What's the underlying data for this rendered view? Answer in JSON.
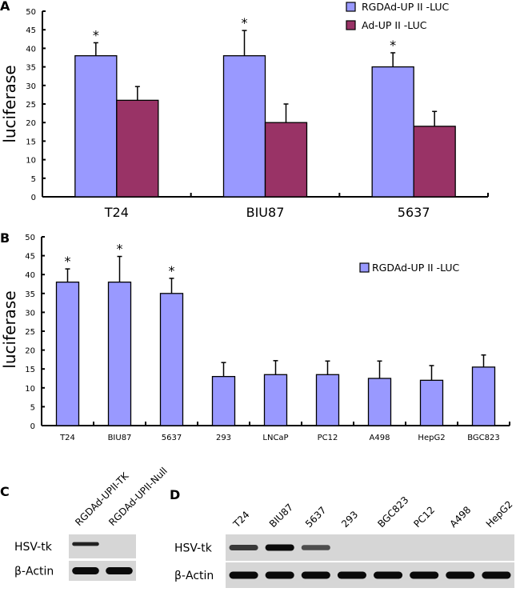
{
  "colors": {
    "rgd": "#9999FF",
    "ad": "#993366",
    "axis": "#000000"
  },
  "chart_data": [
    {
      "panel": "A",
      "type": "bar",
      "title": "",
      "xlabel": "",
      "ylabel": "luciferase",
      "ylim": [
        0,
        50
      ],
      "yticks": [
        0,
        5,
        10,
        15,
        20,
        25,
        30,
        35,
        40,
        45,
        50
      ],
      "categories": [
        "T24",
        "BIU87",
        "5637"
      ],
      "legend_position": "top-right",
      "series": [
        {
          "name": "RGDAd-UP II -LUC",
          "color": "#9999FF",
          "values": [
            38,
            38,
            35
          ],
          "error": [
            3.5,
            6.8,
            3.8
          ],
          "significance": [
            "*",
            "*",
            "*"
          ]
        },
        {
          "name": "Ad-UP II -LUC",
          "color": "#993366",
          "values": [
            26,
            20,
            19
          ],
          "error": [
            3.7,
            5,
            4
          ],
          "significance": [
            "",
            "",
            ""
          ]
        }
      ]
    },
    {
      "panel": "B",
      "type": "bar",
      "title": "",
      "xlabel": "",
      "ylabel": "luciferase",
      "ylim": [
        0,
        50
      ],
      "yticks": [
        0,
        5,
        10,
        15,
        20,
        25,
        30,
        35,
        40,
        45,
        50
      ],
      "categories": [
        "T24",
        "BIU87",
        "5637",
        "293",
        "LNCaP",
        "PC12",
        "A498",
        "HepG2",
        "BGC823"
      ],
      "legend_position": "top-right",
      "series": [
        {
          "name": "RGDAd-UP II -LUC",
          "color": "#9999FF",
          "values": [
            38,
            38,
            35,
            13,
            13.5,
            13.5,
            12.5,
            12,
            15.5
          ],
          "error": [
            3.5,
            6.8,
            4,
            3.7,
            3.7,
            3.6,
            4.6,
            3.9,
            3.2
          ],
          "significance": [
            "*",
            "*",
            "*",
            "",
            "",
            "",
            "",
            "",
            ""
          ]
        }
      ]
    }
  ],
  "panel_c": {
    "letter": "C",
    "lanes": [
      "RGDAd-UPII-TK",
      "RGDAd-UPII-Null"
    ],
    "rows": [
      {
        "label": "HSV-tk",
        "intensities": [
          0.85,
          0
        ]
      },
      {
        "label": "β-Actin",
        "intensities": [
          1,
          1
        ]
      }
    ]
  },
  "panel_d": {
    "letter": "D",
    "lanes": [
      "T24",
      "BIU87",
      "5637",
      "293",
      "BGC823",
      "PC12",
      "A498",
      "HepG2"
    ],
    "rows": [
      {
        "label": "HSV-tk",
        "intensities": [
          0.7,
          1,
          0.55,
          0,
          0,
          0,
          0,
          0
        ]
      },
      {
        "label": "β-Actin",
        "intensities": [
          1,
          1,
          1,
          1,
          1,
          1,
          1,
          1
        ]
      }
    ]
  }
}
